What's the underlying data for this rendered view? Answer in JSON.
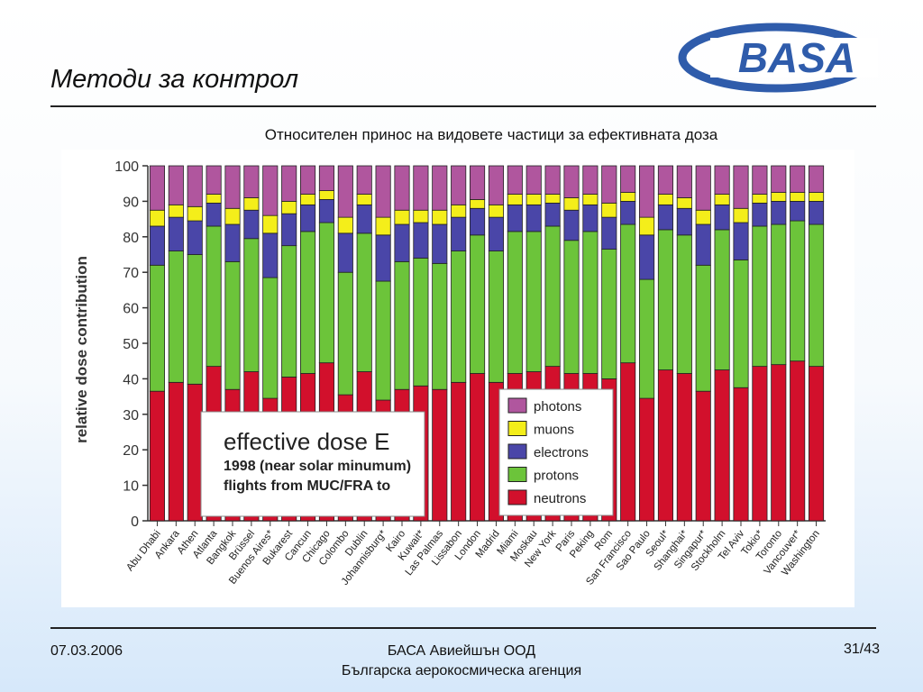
{
  "slide": {
    "title": "Методи за контрол",
    "subtitle": "Относителен принос на видовете частици за ефективната доза",
    "logo_text": "BASA",
    "footer_date": "07.03.2006",
    "footer_line1": "БАСА Авиейшън ООД",
    "footer_line2": "Българска аерокосмическа агенция",
    "page": "31/43"
  },
  "colors": {
    "neutrons": "#d2102c",
    "protons": "#6cc43a",
    "electrons": "#4a46a8",
    "muons": "#f4ee1a",
    "photons": "#b0569e",
    "logo": "#2f5cab"
  },
  "chart_data": {
    "type": "bar",
    "stacked": true,
    "ylabel": "relative dose contribution",
    "ylim": [
      0,
      100
    ],
    "yticks": [
      0,
      10,
      20,
      30,
      40,
      50,
      60,
      70,
      80,
      90,
      100
    ],
    "annotation": {
      "line1": "effective dose E",
      "line2": "1998 (near solar minumum)",
      "line3": "flights from MUC/FRA to"
    },
    "legend_position": "lower-right",
    "categories": [
      "Abu Dhabi",
      "Ankara",
      "Athen",
      "Atlanta",
      "Bangkok",
      "Brüssel",
      "Buenos Aires*",
      "Bukarest",
      "Cancun",
      "Chicago",
      "Colombo",
      "Dublin",
      "Johannisburg*",
      "Kairo",
      "Kuwait*",
      "Las Palmas",
      "Lissabon",
      "London",
      "Madrid",
      "Miami",
      "Moskau",
      "New York",
      "Paris",
      "Peking",
      "Rom",
      "San Francisco",
      "Sao Paulo",
      "Seoul*",
      "Shanghai*",
      "Singapur*",
      "Stockholm",
      "Tel Aviv",
      "Tokio*",
      "Toronto",
      "Vancouver*",
      "Washington"
    ],
    "series": [
      {
        "name": "neutrons",
        "values": [
          36.5,
          39,
          38.5,
          43.5,
          37,
          42,
          34.5,
          40.5,
          41.5,
          44.5,
          35.5,
          42,
          34,
          37,
          38,
          37,
          39,
          41.5,
          39,
          41.5,
          42,
          43.5,
          41.5,
          41.5,
          40,
          44.5,
          34.5,
          42.5,
          41.5,
          36.5,
          42.5,
          37.5,
          43.5,
          44,
          45,
          43.5
        ]
      },
      {
        "name": "protons",
        "values": [
          35.5,
          37,
          36.5,
          39.5,
          36,
          37.5,
          34,
          37,
          40,
          39.5,
          34.5,
          39,
          33.5,
          36,
          36,
          35.5,
          37,
          39,
          37,
          40,
          39.5,
          39.5,
          37.5,
          40,
          36.5,
          39,
          33.5,
          39.5,
          39,
          35.5,
          39.5,
          36,
          39.5,
          39.5,
          39.5,
          40
        ]
      },
      {
        "name": "electrons",
        "values": [
          11,
          9.5,
          9.5,
          6.5,
          10.5,
          8,
          12.5,
          9,
          7.5,
          6.5,
          11,
          8,
          13,
          10.5,
          10,
          11,
          9.5,
          7.5,
          9.5,
          7.5,
          7.5,
          6.5,
          8.5,
          7.5,
          9,
          6.5,
          12.5,
          7,
          7.5,
          11.5,
          7,
          10.5,
          6.5,
          6.5,
          5.5,
          6.5
        ]
      },
      {
        "name": "muons",
        "values": [
          4.5,
          3.5,
          4,
          2.5,
          4.5,
          3.5,
          5,
          3.5,
          3,
          2.5,
          4.5,
          3,
          5,
          4,
          3.5,
          4,
          3.5,
          2.5,
          3.5,
          3,
          3,
          2.5,
          3.5,
          3,
          4,
          2.5,
          5,
          3,
          3,
          4,
          3,
          4,
          2.5,
          2.5,
          2.5,
          2.5
        ]
      },
      {
        "name": "photons",
        "values": [
          12.5,
          11,
          11.5,
          8,
          12,
          9,
          14,
          10,
          8,
          7,
          14.5,
          8,
          14.5,
          12.5,
          12.5,
          12.5,
          11,
          9.5,
          11,
          8,
          8,
          8,
          9,
          8,
          10.5,
          7.5,
          14.5,
          8,
          9,
          12.5,
          8,
          12,
          8,
          7.5,
          7.5,
          7.5
        ]
      }
    ]
  }
}
